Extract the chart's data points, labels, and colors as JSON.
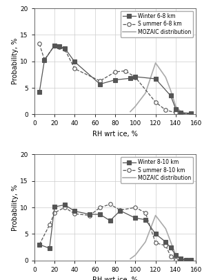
{
  "panel1": {
    "title": "",
    "winter_x": [
      5,
      10,
      20,
      25,
      30,
      40,
      65,
      80,
      95,
      100,
      120,
      135,
      140,
      145,
      155
    ],
    "winter_y": [
      4.2,
      10.2,
      13.0,
      12.8,
      12.5,
      9.9,
      5.7,
      6.5,
      6.8,
      7.1,
      6.7,
      3.5,
      1.0,
      0.3,
      0.2
    ],
    "summer_x": [
      5,
      10,
      20,
      25,
      30,
      40,
      65,
      80,
      90,
      100,
      120,
      130,
      140,
      145,
      155
    ],
    "summer_y": [
      13.3,
      10.3,
      13.0,
      12.7,
      12.3,
      8.6,
      6.3,
      8.0,
      8.2,
      7.0,
      2.3,
      0.8,
      0.3,
      0.1,
      0.1
    ],
    "mozaic_x": [
      95,
      100,
      110,
      120,
      130,
      135,
      140,
      145,
      150,
      155
    ],
    "mozaic_y": [
      0.5,
      1.5,
      4.0,
      9.7,
      7.0,
      4.5,
      1.5,
      0.5,
      0.1,
      0.0
    ],
    "legend_winter": "Winter 6-8 km",
    "legend_summer": "S ummer 6-8 km",
    "legend_mozaic": "MOZAIC distribution"
  },
  "panel2": {
    "title": "",
    "winter_x": [
      5,
      15,
      20,
      30,
      40,
      55,
      65,
      75,
      85,
      100,
      110,
      120,
      130,
      135,
      140,
      145,
      150,
      155
    ],
    "winter_y": [
      3.0,
      2.3,
      10.1,
      10.5,
      9.3,
      8.7,
      8.7,
      7.5,
      9.4,
      8.0,
      7.7,
      5.0,
      3.5,
      2.4,
      1.0,
      0.4,
      0.1,
      0.1
    ],
    "summer_x": [
      5,
      15,
      20,
      30,
      40,
      55,
      65,
      75,
      85,
      100,
      110,
      120,
      130,
      135,
      140,
      150,
      155
    ],
    "summer_y": [
      3.0,
      6.7,
      9.0,
      10.0,
      8.8,
      8.5,
      10.0,
      10.6,
      9.5,
      10.0,
      9.0,
      3.3,
      2.8,
      0.8,
      0.1,
      0.1,
      0.0
    ],
    "mozaic_x": [
      95,
      100,
      110,
      120,
      130,
      135,
      140,
      145,
      150,
      155
    ],
    "mozaic_y": [
      0.3,
      1.0,
      3.5,
      8.5,
      6.0,
      3.5,
      1.0,
      0.3,
      0.1,
      0.0
    ],
    "legend_winter": "Winter 8-10 km",
    "legend_summer": "S ummer 8-10 km",
    "legend_mozaic": "MOZAIC distribution"
  },
  "xlabel": "RH wrt ice, %",
  "ylabel": "Probability, %",
  "xlim": [
    0,
    160
  ],
  "ylim": [
    0,
    20
  ],
  "xticks": [
    0,
    20,
    40,
    60,
    80,
    100,
    120,
    140,
    160
  ],
  "yticks": [
    0,
    5,
    10,
    15,
    20
  ],
  "line_color_winter": "#555555",
  "line_color_summer": "#888888",
  "line_color_mozaic": "#aaaaaa",
  "bg_color": "#ffffff",
  "grid_color": "#cccccc"
}
